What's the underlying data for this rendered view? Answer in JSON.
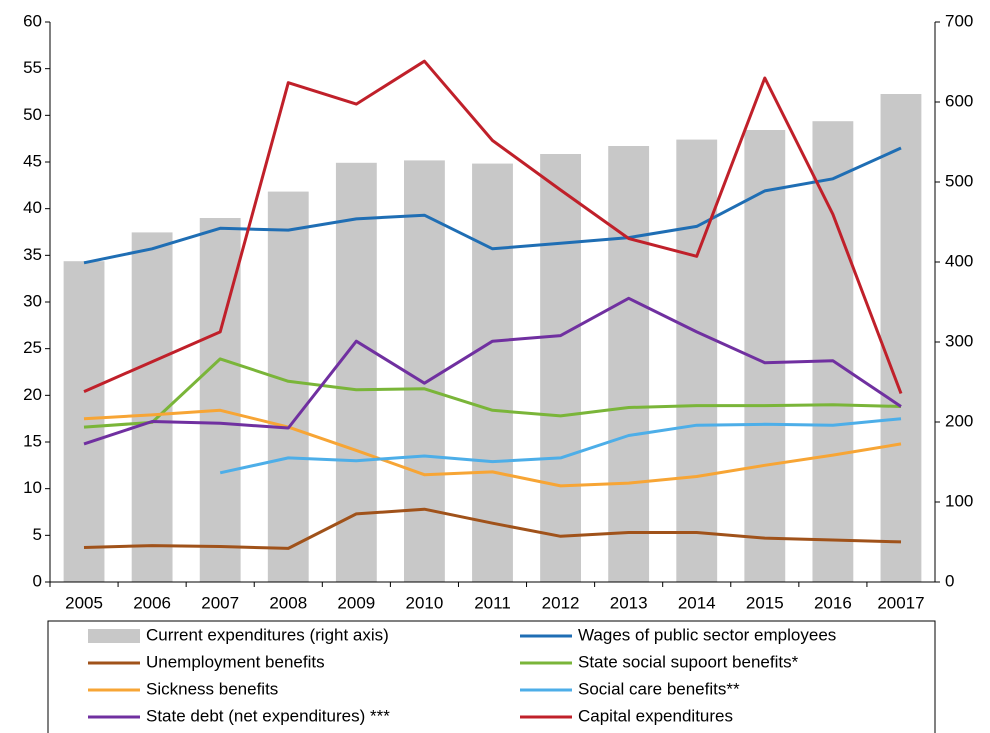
{
  "chart_data": {
    "type": "combo",
    "categories": [
      "2005",
      "2006",
      "2007",
      "2008",
      "2009",
      "2010",
      "2011",
      "2012",
      "2013",
      "2014",
      "2015",
      "2016",
      "20017"
    ],
    "ylim": [
      0,
      60
    ],
    "yticks": [
      0,
      5,
      10,
      15,
      20,
      25,
      30,
      35,
      40,
      45,
      50,
      55,
      60
    ],
    "y2lim": [
      0,
      700
    ],
    "y2ticks": [
      0,
      100,
      200,
      300,
      400,
      500,
      600,
      700
    ],
    "grid": false,
    "legend": "bottom",
    "series": [
      {
        "name": "Current expenditures (right axis)",
        "type": "bar",
        "axis": "y2",
        "color": "#c8c8c8",
        "values": [
          401,
          437,
          455,
          488,
          524,
          527,
          523,
          535,
          545,
          553,
          565,
          576,
          610
        ]
      },
      {
        "name": "Wages of public sector employees",
        "type": "line",
        "color": "#1f6eb4",
        "values": [
          34.2,
          35.7,
          37.9,
          37.7,
          38.9,
          39.3,
          35.7,
          36.3,
          36.9,
          38.1,
          41.9,
          43.2,
          46.5
        ]
      },
      {
        "name": "Unemployment benefits",
        "type": "line",
        "color": "#a0521a",
        "values": [
          3.7,
          3.9,
          3.8,
          3.6,
          7.3,
          7.8,
          6.3,
          4.9,
          5.3,
          5.3,
          4.7,
          4.5,
          4.3
        ]
      },
      {
        "name": "State social supoort benefits*",
        "type": "line",
        "color": "#7ab539",
        "values": [
          16.6,
          17.1,
          23.9,
          21.5,
          20.6,
          20.7,
          18.4,
          17.8,
          18.7,
          18.9,
          18.9,
          19.0,
          18.8
        ]
      },
      {
        "name": "Sickness benefits",
        "type": "line",
        "color": "#f7a535",
        "values": [
          17.5,
          17.9,
          18.4,
          16.6,
          14.1,
          11.5,
          11.8,
          10.3,
          10.6,
          11.3,
          12.5,
          13.6,
          14.8
        ]
      },
      {
        "name": "Social care benefits**",
        "type": "line",
        "color": "#4daee8",
        "values": [
          null,
          null,
          11.7,
          13.3,
          13.0,
          13.5,
          12.9,
          13.3,
          15.7,
          16.8,
          16.9,
          16.8,
          17.5
        ]
      },
      {
        "name": "State debt (net expenditures) ***",
        "type": "line",
        "color": "#7030a0",
        "values": [
          14.8,
          17.2,
          17.0,
          16.5,
          25.8,
          21.3,
          25.8,
          26.4,
          30.4,
          26.8,
          23.5,
          23.7,
          18.8
        ]
      },
      {
        "name": "Capital expenditures",
        "type": "line",
        "color": "#c0202a",
        "values": [
          20.4,
          23.6,
          26.8,
          53.5,
          51.2,
          55.8,
          47.3,
          42.0,
          36.8,
          34.9,
          54.0,
          39.4,
          20.2
        ]
      }
    ]
  }
}
